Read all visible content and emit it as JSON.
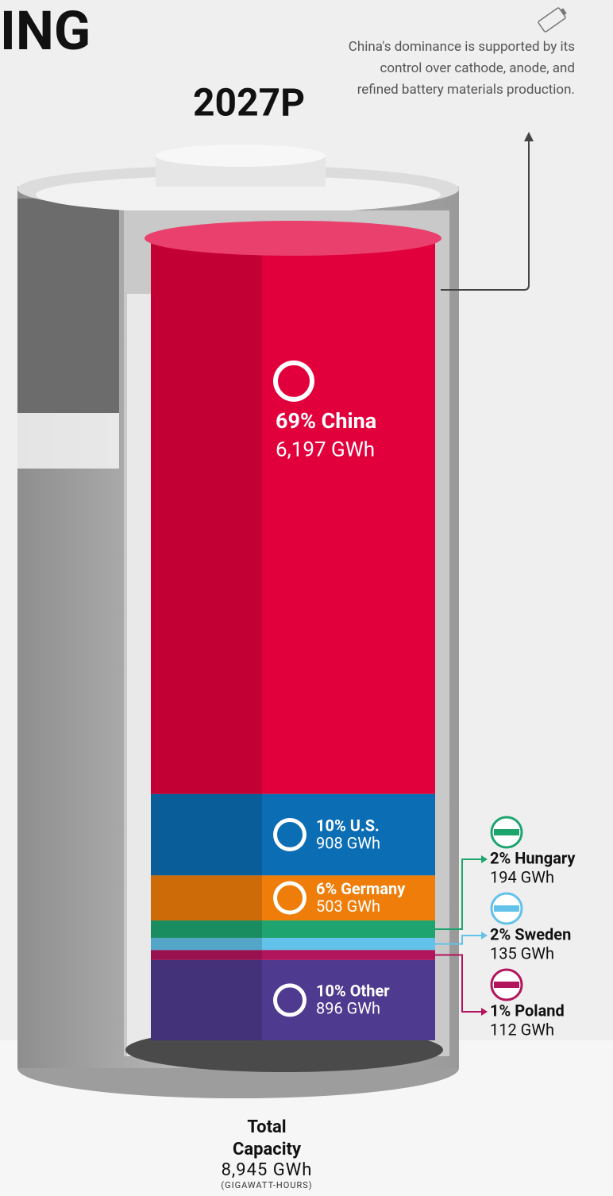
{
  "chart_data": {
    "type": "battery",
    "heading": "ING",
    "title": "2027P",
    "note": "China's dominance is supported by its control over cathode, anode, and refined battery materials production.",
    "series": [
      {
        "name": "69% China",
        "color": "#e2003c",
        "values": [
          6197
        ],
        "value_labels": [
          "6,197 GWh"
        ]
      },
      {
        "name": "10% U.S.",
        "color": "#0b6db3",
        "values": [
          908
        ],
        "value_labels": [
          "908 GWh"
        ]
      },
      {
        "name": "6% Germany",
        "color": "#ee7d0a",
        "values": [
          503
        ],
        "value_labels": [
          "503 GWh"
        ]
      },
      {
        "name": "2% Hungary",
        "color": "#1ea56f",
        "values": [
          194
        ],
        "value_labels": [
          "194 GWh"
        ]
      },
      {
        "name": "2% Sweden",
        "color": "#62c2ea",
        "values": [
          135
        ],
        "value_labels": [
          "135 GWh"
        ]
      },
      {
        "name": "1% Poland",
        "color": "#b3155c",
        "values": [
          112
        ],
        "value_labels": [
          "112 GWh"
        ]
      },
      {
        "name": "10% Other",
        "color": "#4e3a8e",
        "values": [
          896
        ],
        "value_labels": [
          "896 GWh"
        ]
      }
    ],
    "total": {
      "label": "Total Capacity",
      "value": 8945,
      "value_label": "8,945 GWh",
      "unit": "(GIGAWATT-HOURS)"
    }
  }
}
